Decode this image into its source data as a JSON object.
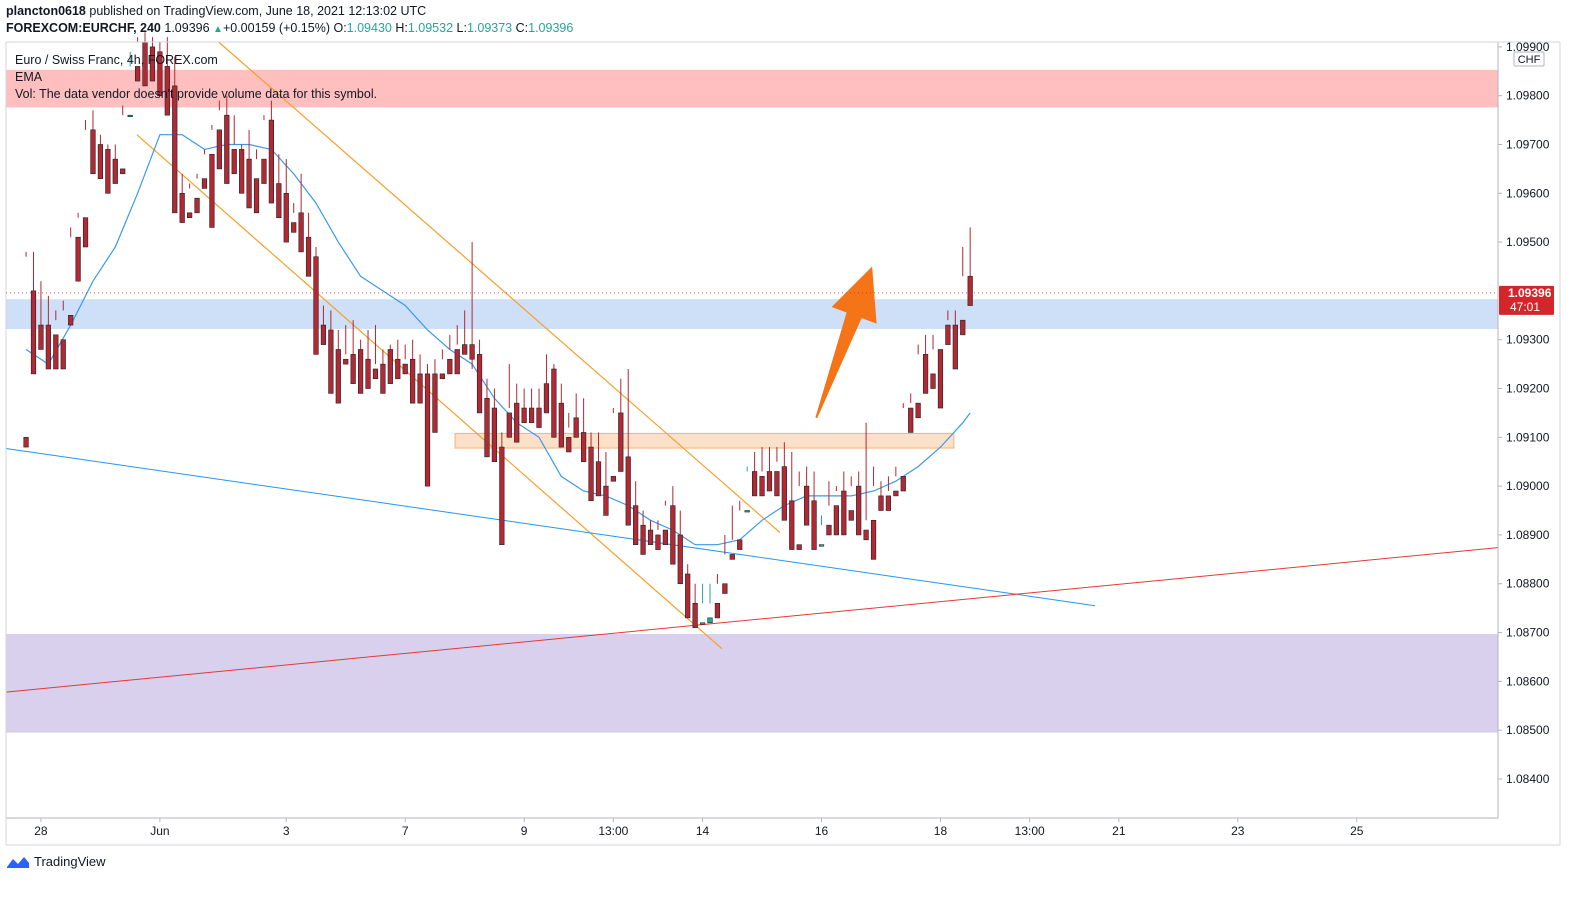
{
  "header": {
    "author": "plancton0618",
    "published": "published on TradingView.com, June 18, 2021 12:13:02 UTC",
    "symbol": "FOREXCOM:EURCHF, 240",
    "last": "1.09396",
    "change": "+0.00159 (+0.15%)",
    "o_label": "O:",
    "o": "1.09430",
    "h_label": "H:",
    "h": "1.09532",
    "l_label": "L:",
    "l": "1.09373",
    "c_label": "C:",
    "c": "1.09396"
  },
  "legend": {
    "title": "Euro / Swiss Franc, 4h, FOREX.com",
    "ema": "EMA",
    "vol": "Vol: The data vendor doesn't provide volume data for this symbol."
  },
  "footer": {
    "brand": "TradingView"
  },
  "colors": {
    "up": "#26a69a",
    "down": "#b22833",
    "ema": "#3c9ae8",
    "channel": "#f5a02a",
    "trend_red": "#e53935",
    "trend_blue": "#2196f3",
    "zone_red": "#ffb8b8",
    "zone_blue": "#c9dbf7",
    "zone_orange": "#fbdcbf",
    "zone_purple": "#d5cbec",
    "arrow": "#f57418",
    "price_tag": "#d3262b"
  },
  "chart_data": {
    "type": "candlestick",
    "currency": "CHF",
    "y_range": [
      1.0832,
      1.0991
    ],
    "y_ticks": [
      "1.09900",
      "1.09800",
      "1.09700",
      "1.09600",
      "1.09500",
      "1.09300",
      "1.09200",
      "1.09100",
      "1.09000",
      "1.08900",
      "1.08800",
      "1.08700",
      "1.08600",
      "1.08500",
      "1.08400"
    ],
    "x_range": [
      -2.7,
      198
    ],
    "x_ticks": [
      {
        "label": "28",
        "i": 2
      },
      {
        "label": "Jun",
        "i": 18
      },
      {
        "label": "3",
        "i": 35
      },
      {
        "label": "7",
        "i": 51
      },
      {
        "label": "9",
        "i": 67
      },
      {
        "label": "13:00",
        "i": 79
      },
      {
        "label": "14",
        "i": 91
      },
      {
        "label": "16",
        "i": 107
      },
      {
        "label": "18",
        "i": 123
      },
      {
        "label": "13:00",
        "i": 135
      },
      {
        "label": "21",
        "i": 147
      },
      {
        "label": "23",
        "i": 163
      },
      {
        "label": "25",
        "i": 179
      }
    ],
    "last_price": {
      "label": "1.09396",
      "value": 1.09396,
      "countdown": "47:01"
    },
    "candles": [
      [
        0,
        1.091,
        1.0947,
        1.0948,
        1.0908
      ],
      [
        1,
        1.094,
        1.0948,
        1.0924,
        1.0923
      ],
      [
        2,
        1.0933,
        1.0942,
        1.0931,
        1.0928
      ],
      [
        3,
        1.0933,
        1.0939,
        1.093,
        1.0924
      ],
      [
        4,
        1.0931,
        1.0936,
        1.0934,
        1.0924
      ],
      [
        5,
        1.093,
        1.0938,
        1.0936,
        1.0924
      ],
      [
        6,
        1.0935,
        1.0953,
        1.0951,
        1.0933
      ],
      [
        7,
        1.0951,
        1.0956,
        1.0955,
        1.0942
      ],
      [
        8,
        1.0955,
        1.0975,
        1.0973,
        1.0949
      ],
      [
        9,
        1.0973,
        1.0977,
        1.097,
        1.0964
      ],
      [
        10,
        1.097,
        1.0972,
        1.0969,
        1.0963
      ],
      [
        11,
        1.0969,
        1.097,
        1.0967,
        1.096
      ],
      [
        12,
        1.0967,
        1.097,
        1.0964,
        1.0962
      ],
      [
        13,
        1.0965,
        1.0978,
        1.0976,
        1.0964
      ],
      [
        14,
        1.0976,
        1.0989,
        1.0986,
        1.0976
      ],
      [
        15,
        1.0986,
        1.0992,
        1.0991,
        1.0983
      ],
      [
        16,
        1.0991,
        1.0993,
        1.0988,
        1.0982
      ],
      [
        17,
        1.099,
        1.0992,
        1.0989,
        1.0983
      ],
      [
        18,
        1.0989,
        1.0991,
        1.0985,
        1.098
      ],
      [
        19,
        1.0986,
        1.0992,
        1.0982,
        1.0976
      ],
      [
        20,
        1.0982,
        1.0988,
        1.096,
        1.0956
      ],
      [
        21,
        1.096,
        1.0964,
        1.0956,
        1.0954
      ],
      [
        22,
        1.0956,
        1.0962,
        1.0961,
        1.0955
      ],
      [
        23,
        1.0959,
        1.0964,
        1.0963,
        1.0956
      ],
      [
        24,
        1.0963,
        1.0969,
        1.0968,
        1.0961
      ],
      [
        25,
        1.0968,
        1.0974,
        1.0973,
        1.0953
      ],
      [
        26,
        1.0973,
        1.0979,
        1.0977,
        1.0965
      ],
      [
        27,
        1.0976,
        1.098,
        1.0968,
        1.0962
      ],
      [
        28,
        1.0969,
        1.0976,
        1.097,
        1.0964
      ],
      [
        29,
        1.0969,
        1.097,
        1.0966,
        1.096
      ],
      [
        30,
        1.0967,
        1.0973,
        1.0963,
        1.0957
      ],
      [
        31,
        1.0963,
        1.0969,
        1.0967,
        1.0956
      ],
      [
        32,
        1.0967,
        1.0976,
        1.0975,
        1.0962
      ],
      [
        33,
        1.0975,
        1.0979,
        1.0962,
        1.0958
      ],
      [
        34,
        1.0962,
        1.0968,
        1.096,
        1.0955
      ],
      [
        35,
        1.096,
        1.0967,
        1.0954,
        1.095
      ],
      [
        36,
        1.0954,
        1.0958,
        1.0956,
        1.0952
      ],
      [
        37,
        1.0956,
        1.0964,
        1.095,
        1.0948
      ],
      [
        38,
        1.0951,
        1.0956,
        1.0947,
        1.0943
      ],
      [
        39,
        1.0947,
        1.0949,
        1.0933,
        1.0927
      ],
      [
        40,
        1.0933,
        1.0937,
        1.093,
        1.0929
      ],
      [
        41,
        1.0932,
        1.0936,
        1.0927,
        1.0919
      ],
      [
        42,
        1.0928,
        1.0932,
        1.0926,
        1.0917
      ],
      [
        43,
        1.0926,
        1.0933,
        1.0927,
        1.0925
      ],
      [
        44,
        1.0927,
        1.0934,
        1.0925,
        1.0921
      ],
      [
        45,
        1.0928,
        1.093,
        1.0925,
        1.0919
      ],
      [
        46,
        1.0926,
        1.0932,
        1.0924,
        1.092
      ],
      [
        47,
        1.0924,
        1.0933,
        1.0925,
        1.0922
      ],
      [
        48,
        1.0925,
        1.0928,
        1.0923,
        1.0919
      ],
      [
        49,
        1.0928,
        1.0929,
        1.0924,
        1.0921
      ],
      [
        50,
        1.0926,
        1.093,
        1.0924,
        1.0922
      ],
      [
        51,
        1.0925,
        1.0929,
        1.0926,
        1.0923
      ],
      [
        52,
        1.0926,
        1.093,
        1.0923,
        1.0917
      ],
      [
        53,
        1.0923,
        1.0927,
        1.0922,
        1.0917
      ],
      [
        54,
        1.0923,
        1.0925,
        1.0922,
        1.09
      ],
      [
        55,
        1.0923,
        1.0926,
        1.0922,
        1.0911
      ],
      [
        56,
        1.0923,
        1.0928,
        1.0926,
        1.0922
      ],
      [
        57,
        1.0926,
        1.0931,
        1.0928,
        1.0923
      ],
      [
        58,
        1.0928,
        1.0933,
        1.0929,
        1.0923
      ],
      [
        59,
        1.0929,
        1.0936,
        1.0929,
        1.0927
      ],
      [
        60,
        1.0929,
        1.095,
        1.0924,
        1.0926
      ],
      [
        61,
        1.0927,
        1.093,
        1.092,
        1.0915
      ],
      [
        62,
        1.0918,
        1.0922,
        1.0906,
        1.0906
      ],
      [
        63,
        1.0916,
        1.092,
        1.0908,
        1.0905
      ],
      [
        64,
        1.0908,
        1.0911,
        1.0891,
        1.0888
      ],
      [
        65,
        1.0915,
        1.0925,
        1.0916,
        1.091
      ],
      [
        66,
        1.0917,
        1.0921,
        1.091,
        1.0909
      ],
      [
        67,
        1.0916,
        1.092,
        1.0914,
        1.0913
      ],
      [
        68,
        1.0916,
        1.092,
        1.0915,
        1.0913
      ],
      [
        69,
        1.0916,
        1.092,
        1.0915,
        1.0912
      ],
      [
        70,
        1.0921,
        1.0927,
        1.092,
        1.0915
      ],
      [
        71,
        1.0924,
        1.0925,
        1.0917,
        1.091
      ],
      [
        72,
        1.0917,
        1.0921,
        1.0911,
        1.0908
      ],
      [
        73,
        1.091,
        1.0915,
        1.0912,
        1.0907
      ],
      [
        74,
        1.0914,
        1.0919,
        1.0911,
        1.091
      ],
      [
        75,
        1.0911,
        1.0918,
        1.0908,
        1.0905
      ],
      [
        76,
        1.0908,
        1.0911,
        1.09,
        1.0897
      ],
      [
        77,
        1.0905,
        1.0911,
        1.09,
        1.0898
      ],
      [
        78,
        1.09,
        1.0907,
        1.09,
        1.0894
      ],
      [
        79,
        1.0902,
        1.0916,
        1.0915,
        1.0901
      ],
      [
        80,
        1.0915,
        1.0922,
        1.0906,
        1.0903
      ],
      [
        81,
        1.0906,
        1.0924,
        1.0896,
        1.0892
      ],
      [
        82,
        1.0896,
        1.0901,
        1.0892,
        1.0888
      ],
      [
        83,
        1.0892,
        1.0895,
        1.089,
        1.0886
      ],
      [
        84,
        1.0891,
        1.0893,
        1.089,
        1.0888
      ],
      [
        85,
        1.089,
        1.0893,
        1.0891,
        1.0887
      ],
      [
        86,
        1.0891,
        1.0897,
        1.0896,
        1.0888
      ],
      [
        87,
        1.0896,
        1.09,
        1.089,
        1.0884
      ],
      [
        88,
        1.089,
        1.0895,
        1.0882,
        1.088
      ],
      [
        89,
        1.0882,
        1.0884,
        1.0876,
        1.0873
      ],
      [
        90,
        1.0876,
        1.088,
        1.0872,
        1.0871
      ],
      [
        91,
        1.0872,
        1.088,
        1.0876,
        1.0872
      ],
      [
        92,
        1.0872,
        1.088,
        1.0876,
        1.0873
      ],
      [
        93,
        1.0876,
        1.0882,
        1.088,
        1.0873
      ],
      [
        94,
        1.088,
        1.089,
        1.0886,
        1.0878
      ],
      [
        95,
        1.0886,
        1.0896,
        1.0889,
        1.0885
      ],
      [
        96,
        1.0889,
        1.0897,
        1.0895,
        1.0887
      ],
      [
        97,
        1.0895,
        1.0904,
        1.0903,
        1.0895
      ],
      [
        98,
        1.0903,
        1.0907,
        1.0902,
        1.0898
      ],
      [
        99,
        1.0902,
        1.0908,
        1.0903,
        1.0898
      ],
      [
        100,
        1.0903,
        1.0908,
        1.0903,
        1.0899
      ],
      [
        101,
        1.0903,
        1.0908,
        1.0905,
        1.0898
      ],
      [
        102,
        1.0904,
        1.0909,
        1.0897,
        1.0893
      ],
      [
        103,
        1.0897,
        1.0907,
        1.0888,
        1.0887
      ],
      [
        104,
        1.0888,
        1.0903,
        1.09,
        1.0887
      ],
      [
        105,
        1.09,
        1.0904,
        1.0897,
        1.0892
      ],
      [
        106,
        1.0897,
        1.0903,
        1.0888,
        1.0887
      ],
      [
        107,
        1.0888,
        1.0894,
        1.0892,
        1.0888
      ],
      [
        108,
        1.0892,
        1.0901,
        1.0896,
        1.089
      ],
      [
        109,
        1.0896,
        1.09,
        1.0899,
        1.089
      ],
      [
        110,
        1.0899,
        1.0903,
        1.0895,
        1.089
      ],
      [
        111,
        1.0895,
        1.0902,
        1.09,
        1.0893
      ],
      [
        112,
        1.09,
        1.0903,
        1.0891,
        1.089
      ],
      [
        113,
        1.0891,
        1.0913,
        1.0893,
        1.0889
      ],
      [
        114,
        1.0893,
        1.0904,
        1.09,
        1.0885
      ],
      [
        115,
        1.0898,
        1.0901,
        1.0898,
        1.0895
      ],
      [
        116,
        1.0898,
        1.0902,
        1.0899,
        1.0895
      ],
      [
        117,
        1.0899,
        1.0904,
        1.0902,
        1.0898
      ],
      [
        118,
        1.0902,
        1.0917,
        1.0916,
        1.0899
      ],
      [
        119,
        1.0916,
        1.0919,
        1.0917,
        1.0911
      ],
      [
        120,
        1.0917,
        1.0929,
        1.0927,
        1.0914
      ],
      [
        121,
        1.0927,
        1.0931,
        1.0923,
        1.0919
      ],
      [
        122,
        1.0923,
        1.0931,
        1.0928,
        1.092
      ],
      [
        123,
        1.0928,
        1.0934,
        1.0934,
        1.0916
      ],
      [
        124,
        1.0933,
        1.0936,
        1.0934,
        1.0929
      ],
      [
        125,
        1.0933,
        1.0936,
        1.0931,
        1.0924
      ],
      [
        126,
        1.0934,
        1.0949,
        1.0943,
        1.0931
      ],
      [
        127,
        1.0943,
        1.0953,
        1.09396,
        1.0937
      ]
    ],
    "ema": [
      [
        0,
        1.0928
      ],
      [
        3,
        1.0925
      ],
      [
        6,
        1.0933
      ],
      [
        9,
        1.0942
      ],
      [
        12,
        1.0949
      ],
      [
        15,
        1.096
      ],
      [
        18,
        1.0972
      ],
      [
        21,
        1.0972
      ],
      [
        24,
        1.0969
      ],
      [
        27,
        1.097
      ],
      [
        30,
        1.097
      ],
      [
        33,
        1.0969
      ],
      [
        36,
        1.0964
      ],
      [
        39,
        1.0958
      ],
      [
        42,
        1.095
      ],
      [
        45,
        1.0943
      ],
      [
        48,
        1.094
      ],
      [
        51,
        1.0937
      ],
      [
        54,
        1.0932
      ],
      [
        57,
        1.0928
      ],
      [
        60,
        1.0925
      ],
      [
        63,
        1.0918
      ],
      [
        66,
        1.0913
      ],
      [
        69,
        1.091
      ],
      [
        72,
        1.0902
      ],
      [
        75,
        1.0899
      ],
      [
        78,
        1.0898
      ],
      [
        81,
        1.0896
      ],
      [
        84,
        1.0893
      ],
      [
        87,
        1.0891
      ],
      [
        90,
        1.0888
      ],
      [
        93,
        1.0888
      ],
      [
        96,
        1.0889
      ],
      [
        99,
        1.0893
      ],
      [
        102,
        1.0896
      ],
      [
        105,
        1.0898
      ],
      [
        108,
        1.0898
      ],
      [
        111,
        1.0898
      ],
      [
        114,
        1.0899
      ],
      [
        117,
        1.0901
      ],
      [
        120,
        1.0904
      ],
      [
        123,
        1.0908
      ],
      [
        126,
        1.0913
      ],
      [
        127,
        1.0915
      ]
    ],
    "zones": [
      {
        "name": "resistance-zone",
        "y1": 1.09853,
        "y2": 1.09776,
        "x1": -2.7,
        "x2": 198,
        "color": "zone_red"
      },
      {
        "name": "support-resistance-zone",
        "y1": 1.09383,
        "y2": 1.09322,
        "x1": -2.7,
        "x2": 198,
        "color": "zone_blue"
      },
      {
        "name": "breakout-zone",
        "y1": 1.09108,
        "y2": 1.09078,
        "x1": 57.7,
        "x2": 124.8,
        "color": "zone_orange"
      },
      {
        "name": "demand-zone",
        "y1": 1.08697,
        "y2": 1.08495,
        "x1": -2.7,
        "x2": 198,
        "color": "zone_purple"
      }
    ],
    "lines": [
      {
        "name": "channel-upper-line",
        "p1": [
          25.9,
          1.0991
        ],
        "p2": [
          101.4,
          1.08905
        ],
        "color": "channel",
        "width": 1.2
      },
      {
        "name": "channel-lower-line",
        "p1": [
          14.9,
          1.0972
        ],
        "p2": [
          93.6,
          1.08667
        ],
        "color": "channel",
        "width": 1.2
      },
      {
        "name": "descending-trendline",
        "p1": [
          -2.7,
          1.09077
        ],
        "p2": [
          143.8,
          1.08755
        ],
        "color": "trend_blue",
        "width": 1
      },
      {
        "name": "ascending-trendline",
        "p1": [
          -2.7,
          1.08578
        ],
        "p2": [
          198,
          1.08874
        ],
        "color": "trend_red",
        "width": 1
      }
    ],
    "arrow": {
      "from": [
        106.3,
        1.0914
      ],
      "to": [
        113.8,
        1.0945
      ]
    }
  }
}
